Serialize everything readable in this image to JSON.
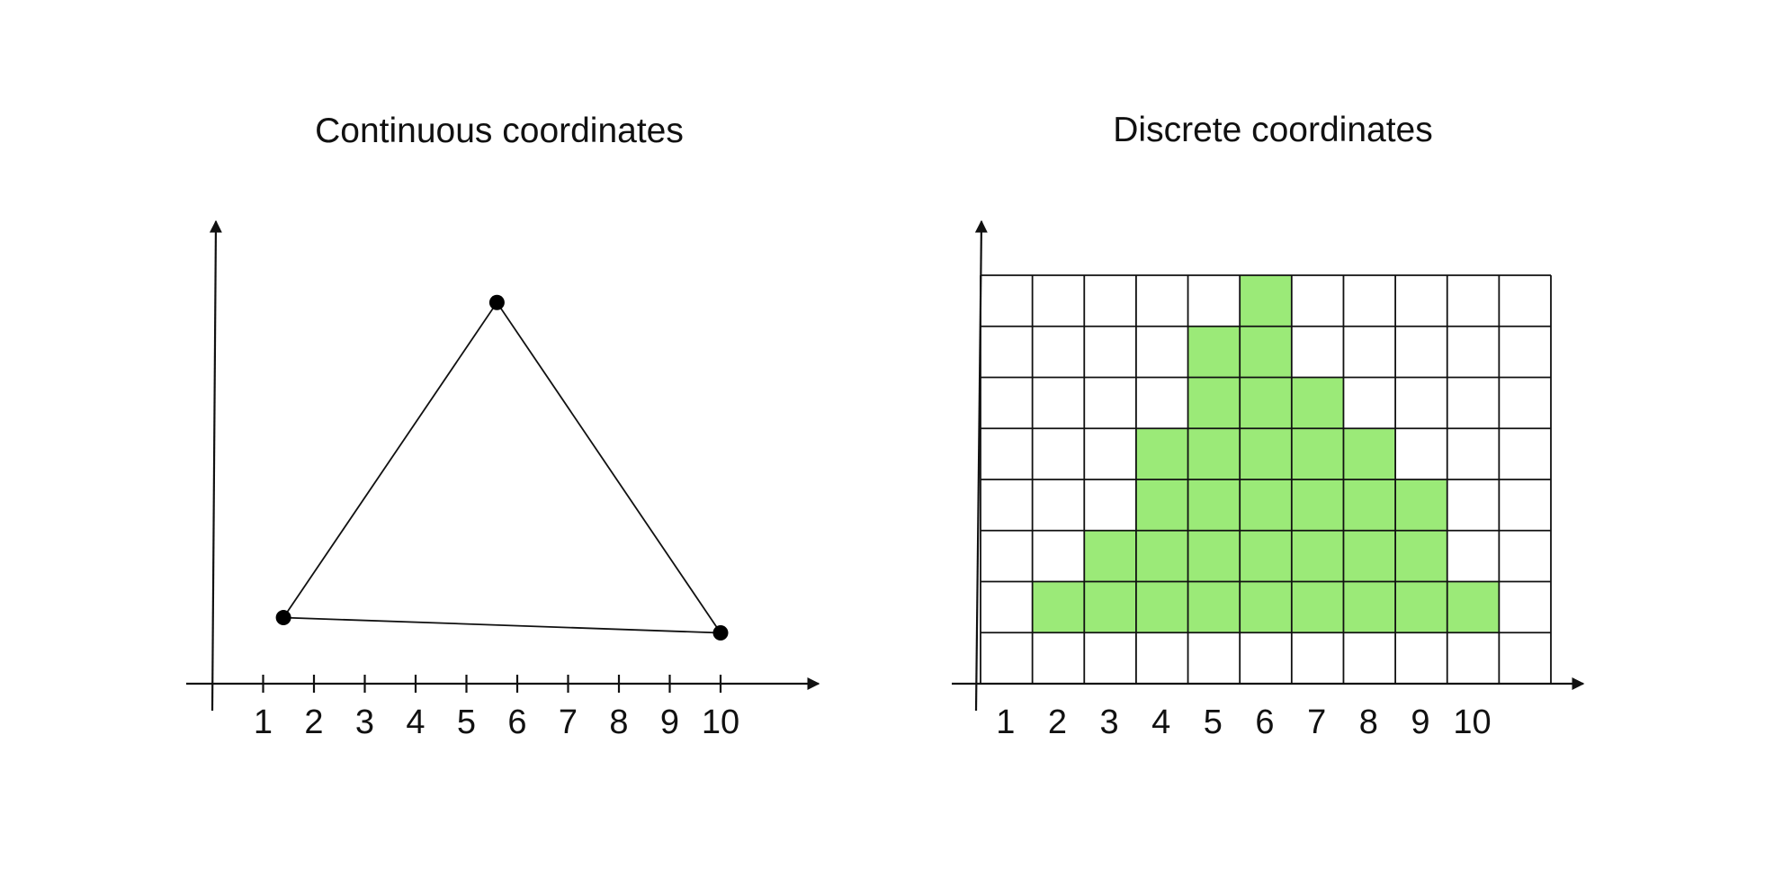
{
  "panels": {
    "continuous": {
      "title": "Continuous coordinates",
      "x_ticks": [
        "1",
        "2",
        "3",
        "4",
        "5",
        "6",
        "7",
        "8",
        "9",
        "10"
      ],
      "triangle_vertices": [
        {
          "x": 1.4,
          "y": 1.3
        },
        {
          "x": 5.6,
          "y": 7.5
        },
        {
          "x": 10.0,
          "y": 1.0
        }
      ]
    },
    "discrete": {
      "title": "Discrete coordinates",
      "x_ticks": [
        "1",
        "2",
        "3",
        "4",
        "5",
        "6",
        "7",
        "8",
        "9",
        "10"
      ],
      "grid_columns": 11,
      "grid_rows": 8,
      "fill_color": "#9bea78",
      "filled_cells_by_row_from_bottom": [
        [],
        [
          2,
          3,
          4,
          5,
          6,
          7,
          8,
          9,
          10
        ],
        [
          3,
          4,
          5,
          6,
          7,
          8,
          9
        ],
        [
          4,
          5,
          6,
          7,
          8,
          9
        ],
        [
          4,
          5,
          6,
          7,
          8
        ],
        [
          5,
          6,
          7
        ],
        [
          5,
          6
        ],
        [
          6
        ]
      ]
    }
  }
}
